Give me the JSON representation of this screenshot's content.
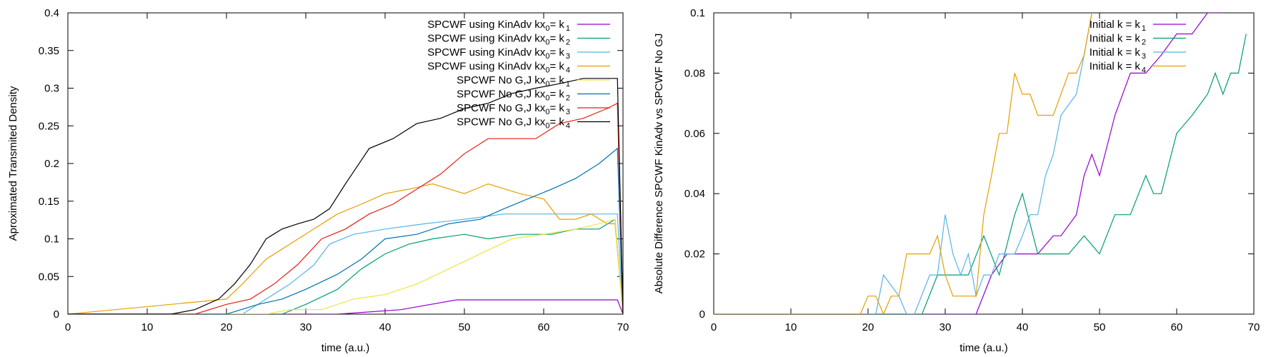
{
  "colors": {
    "purple": "#9400d3",
    "green": "#009e73",
    "cyan": "#56b4e9",
    "orange": "#e69f00",
    "yellow": "#f0e442",
    "black": "#000000",
    "blue": "#0072b2",
    "red": "#e51e10"
  },
  "chart_data": [
    {
      "type": "line",
      "xlabel": "time (a.u.)",
      "ylabel": "Aproximated Transmited Density",
      "xlim": [
        0,
        70
      ],
      "ylim": [
        0,
        0.4
      ],
      "xticks": [
        0,
        10,
        20,
        30,
        40,
        50,
        60,
        70
      ],
      "yticks": [
        0,
        0.05,
        0.1,
        0.15,
        0.2,
        0.25,
        0.3,
        0.35,
        0.4
      ],
      "ytick_labels": [
        "0",
        "0.05",
        "0.1",
        "0.15",
        "0.2",
        "0.25",
        "0.3",
        "0.35",
        "0.4"
      ],
      "legend_position": "top-right",
      "series": [
        {
          "name": "SPCWF using KinAdv kx",
          "sub": "0",
          "eq": "= k",
          "ksub": "1",
          "color": "purple",
          "x": [
            0,
            34,
            42,
            49,
            69.3,
            70
          ],
          "y": [
            0,
            0,
            0.006,
            0.019,
            0.019,
            0
          ]
        },
        {
          "name": "SPCWF using KinAdv kx",
          "sub": "0",
          "eq": "= k",
          "ksub": "2",
          "color": "green",
          "x": [
            0,
            27,
            30,
            34,
            37,
            40,
            43,
            46,
            50,
            53,
            57,
            61,
            64,
            67,
            69,
            70
          ],
          "y": [
            0,
            0,
            0.013,
            0.033,
            0.06,
            0.08,
            0.093,
            0.1,
            0.106,
            0.1,
            0.106,
            0.106,
            0.113,
            0.113,
            0.126,
            0
          ]
        },
        {
          "name": "SPCWF using KinAdv kx",
          "sub": "0",
          "eq": "= k",
          "ksub": "3",
          "color": "cyan",
          "x": [
            0,
            22,
            25,
            28,
            31,
            33,
            36,
            40,
            45,
            50,
            55,
            60,
            65,
            69.3,
            70
          ],
          "y": [
            0,
            0,
            0.02,
            0.04,
            0.065,
            0.093,
            0.106,
            0.113,
            0.12,
            0.126,
            0.133,
            0.133,
            0.133,
            0.133,
            0
          ]
        },
        {
          "name": "SPCWF using KinAdv kx",
          "sub": "0",
          "eq": "= k",
          "ksub": "4",
          "color": "orange",
          "x": [
            0,
            20,
            22,
            25,
            28,
            31,
            34,
            37,
            40,
            43,
            46,
            50,
            53,
            57,
            60,
            62,
            64,
            66,
            68,
            69,
            70
          ],
          "y": [
            0,
            0.02,
            0.04,
            0.073,
            0.093,
            0.113,
            0.133,
            0.146,
            0.16,
            0.166,
            0.173,
            0.16,
            0.173,
            0.16,
            0.153,
            0.126,
            0.126,
            0.133,
            0.12,
            0.12,
            0
          ]
        },
        {
          "name": "SPCWF No G,J kx",
          "sub": "0",
          "eq": "= k",
          "ksub": "1",
          "color": "yellow",
          "x": [
            0,
            25,
            28,
            32,
            36,
            40,
            44,
            48,
            52,
            56,
            60,
            64,
            67,
            69,
            70
          ],
          "y": [
            0,
            0,
            0.006,
            0.006,
            0.02,
            0.026,
            0.04,
            0.06,
            0.08,
            0.1,
            0.106,
            0.113,
            0.12,
            0.126,
            0
          ]
        },
        {
          "name": "SPCWF No G,J kx",
          "sub": "0",
          "eq": "= k",
          "ksub": "2",
          "color": "blue",
          "x": [
            0,
            20,
            24,
            27,
            30,
            34,
            37,
            40,
            44,
            48,
            52,
            55,
            58,
            61,
            64,
            67,
            69.3,
            70
          ],
          "y": [
            0,
            0,
            0.013,
            0.02,
            0.033,
            0.053,
            0.073,
            0.1,
            0.106,
            0.12,
            0.126,
            0.14,
            0.153,
            0.166,
            0.18,
            0.2,
            0.22,
            0
          ]
        },
        {
          "name": "SPCWF No G,J kx",
          "sub": "0",
          "eq": "= k",
          "ksub": "3",
          "color": "red",
          "x": [
            0,
            16,
            20,
            23,
            26,
            29,
            32,
            35,
            38,
            41,
            44,
            47,
            50,
            53,
            56,
            59,
            62,
            65,
            68,
            69.3,
            70
          ],
          "y": [
            0,
            0,
            0.013,
            0.02,
            0.04,
            0.066,
            0.1,
            0.113,
            0.133,
            0.146,
            0.166,
            0.186,
            0.213,
            0.233,
            0.233,
            0.233,
            0.253,
            0.26,
            0.273,
            0.28,
            0
          ]
        },
        {
          "name": "SPCWF No G,J kx",
          "sub": "0",
          "eq": "= k",
          "ksub": "4",
          "color": "black",
          "x": [
            0,
            13,
            16,
            19,
            21,
            23,
            25,
            27,
            29,
            31,
            33,
            35,
            38,
            41,
            44,
            47,
            50,
            53,
            56,
            59,
            62,
            65,
            67,
            69.3,
            70
          ],
          "y": [
            0,
            0,
            0.006,
            0.02,
            0.04,
            0.066,
            0.1,
            0.113,
            0.12,
            0.126,
            0.14,
            0.173,
            0.22,
            0.233,
            0.253,
            0.26,
            0.273,
            0.28,
            0.293,
            0.3,
            0.306,
            0.313,
            0.313,
            0.313,
            0
          ]
        }
      ]
    },
    {
      "type": "line",
      "xlabel": "time (a.u.)",
      "ylabel": "Absolute Difference SPCWF KinAdv vs SPCWF No GJ",
      "xlim": [
        0,
        70
      ],
      "ylim": [
        0,
        0.1
      ],
      "xticks": [
        0,
        10,
        20,
        30,
        40,
        50,
        60,
        70
      ],
      "yticks": [
        0,
        0.02,
        0.04,
        0.06,
        0.08,
        0.1
      ],
      "ytick_labels": [
        "0",
        "0.02",
        "0.04",
        "0.06",
        "0.08",
        "0.1"
      ],
      "legend_position": "top-right",
      "series": [
        {
          "name": "Initial k",
          "eq": "= k",
          "ksub": "1",
          "color": "purple",
          "x": [
            0,
            34,
            36,
            38,
            40,
            42,
            44,
            45,
            47,
            48,
            49,
            50,
            52,
            54,
            56,
            58,
            60,
            62,
            64,
            66
          ],
          "y": [
            0,
            0,
            0.013,
            0.02,
            0.02,
            0.02,
            0.026,
            0.026,
            0.033,
            0.046,
            0.053,
            0.046,
            0.066,
            0.08,
            0.08,
            0.086,
            0.093,
            0.093,
            0.1,
            0.1
          ]
        },
        {
          "name": "Initial k",
          "eq": "= k",
          "ksub": "2",
          "color": "green",
          "x": [
            0,
            27,
            29,
            31,
            33,
            35,
            37,
            39,
            40,
            42,
            44,
            46,
            48,
            50,
            52,
            54,
            56,
            57,
            58,
            60,
            62,
            64,
            65,
            66,
            67,
            68,
            69
          ],
          "y": [
            0,
            0,
            0.013,
            0.013,
            0.013,
            0.026,
            0.013,
            0.033,
            0.04,
            0.02,
            0.02,
            0.02,
            0.026,
            0.02,
            0.033,
            0.033,
            0.046,
            0.04,
            0.04,
            0.06,
            0.066,
            0.073,
            0.08,
            0.073,
            0.08,
            0.08,
            0.093
          ]
        },
        {
          "name": "Initial k",
          "eq": "= k",
          "ksub": "3",
          "color": "cyan",
          "x": [
            0,
            21,
            22,
            24,
            25,
            26,
            28,
            29,
            30,
            31,
            32,
            33,
            34,
            35,
            36,
            37,
            38,
            39,
            40,
            41,
            42,
            43,
            44,
            45,
            47,
            48,
            49
          ],
          "y": [
            0,
            0,
            0.013,
            0.006,
            0,
            0,
            0.013,
            0.013,
            0.033,
            0.02,
            0.013,
            0.02,
            0.006,
            0.013,
            0.013,
            0.02,
            0.02,
            0.02,
            0.026,
            0.033,
            0.033,
            0.046,
            0.053,
            0.066,
            0.073,
            0.086,
            0.1
          ]
        },
        {
          "name": "Initial k",
          "eq": "= k",
          "ksub": "4",
          "color": "orange",
          "x": [
            0,
            19,
            20,
            21,
            22,
            23,
            24,
            25,
            27,
            28,
            29,
            30,
            31,
            32,
            33,
            34,
            35,
            36,
            37,
            38,
            39,
            40,
            41,
            42,
            43,
            44,
            45,
            46,
            47,
            48,
            49
          ],
          "y": [
            0,
            0,
            0.006,
            0.006,
            0,
            0.006,
            0.006,
            0.02,
            0.02,
            0.02,
            0.026,
            0.013,
            0.006,
            0.006,
            0.006,
            0.006,
            0.033,
            0.046,
            0.06,
            0.06,
            0.08,
            0.073,
            0.073,
            0.066,
            0.066,
            0.066,
            0.073,
            0.08,
            0.08,
            0.086,
            0.1
          ]
        }
      ]
    }
  ]
}
